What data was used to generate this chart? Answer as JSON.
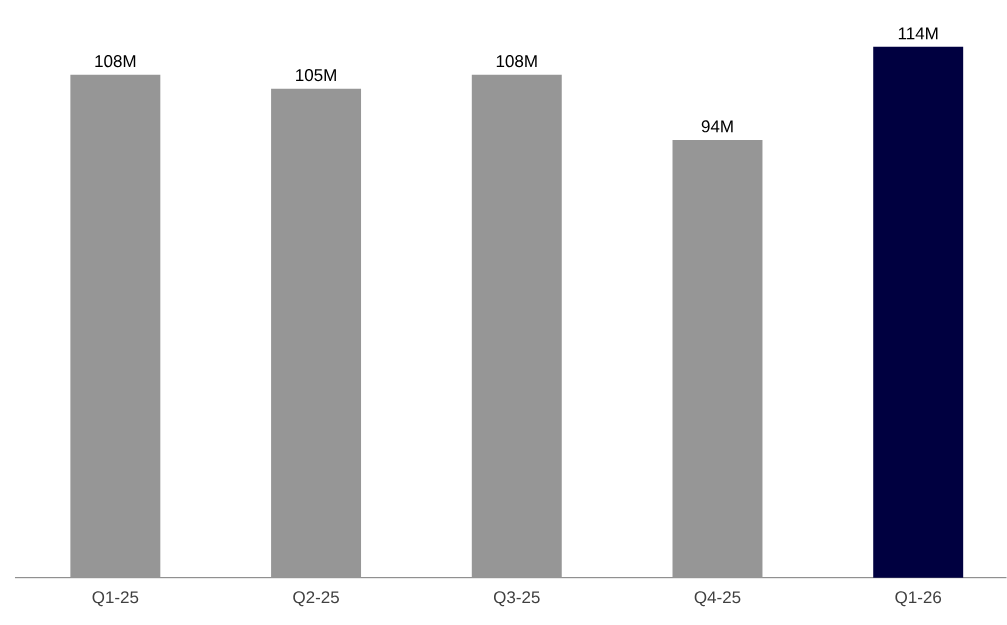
{
  "chart_data": {
    "type": "bar",
    "categories": [
      "Q1-25",
      "Q2-25",
      "Q3-25",
      "Q4-25",
      "Q1-26"
    ],
    "values": [
      108,
      105,
      108,
      94,
      114
    ],
    "colors": [
      "#969696",
      "#969696",
      "#969696",
      "#969696",
      "#000040"
    ],
    "value_labels": [
      "108M",
      "105M",
      "108M",
      "94M",
      "114M"
    ],
    "tick_labels": "x"
  }
}
